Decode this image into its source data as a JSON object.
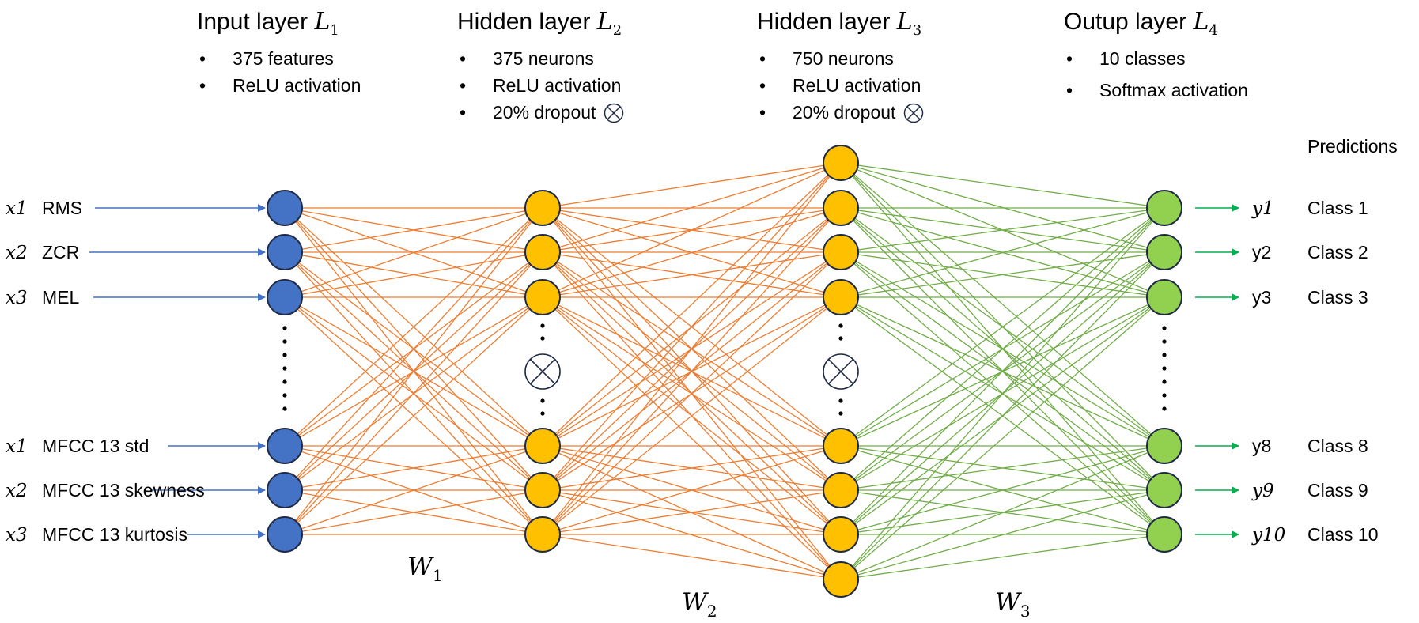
{
  "layers": [
    {
      "title": "Input layer",
      "symbol": "L",
      "sub": "1",
      "bullets": [
        "375 features",
        "ReLU activation"
      ],
      "dropout_bullet": -1
    },
    {
      "title": "Hidden layer",
      "symbol": "L",
      "sub": "2",
      "bullets": [
        "375 neurons",
        "ReLU activation",
        "20% dropout"
      ],
      "dropout_bullet": 2
    },
    {
      "title": "Hidden layer",
      "symbol": "L",
      "sub": "3",
      "bullets": [
        "750 neurons",
        "ReLU activation",
        "20% dropout"
      ],
      "dropout_bullet": 2
    },
    {
      "title": "Outup layer",
      "symbol": "L",
      "sub": "4",
      "bullets": [
        "10 classes",
        "Softmax activation"
      ],
      "dropout_bullet": -1
    }
  ],
  "predictions_label": "Predictions",
  "inputs": [
    {
      "var": "x1",
      "name": "RMS"
    },
    {
      "var": "x2",
      "name": "ZCR"
    },
    {
      "var": "x3",
      "name": "MEL"
    },
    {
      "var": "x1",
      "name": "MFCC 13 std"
    },
    {
      "var": "x2",
      "name": "MFCC 13 skewness"
    },
    {
      "var": "x3",
      "name": "MFCC 13 kurtosis"
    }
  ],
  "outputs": [
    {
      "var": "y1",
      "italic": true,
      "cls": "Class 1"
    },
    {
      "var": "y2",
      "italic": false,
      "cls": "Class 2"
    },
    {
      "var": "y3",
      "italic": false,
      "cls": "Class 3"
    },
    {
      "var": "y8",
      "italic": false,
      "cls": "Class 8"
    },
    {
      "var": "y9",
      "italic": true,
      "cls": "Class 9"
    },
    {
      "var": "y10",
      "italic": true,
      "cls": "Class 10"
    }
  ],
  "weights": [
    {
      "symbol": "W",
      "sub": "1"
    },
    {
      "symbol": "W",
      "sub": "2"
    },
    {
      "symbol": "W",
      "sub": "3"
    }
  ],
  "colors": {
    "input_node": "#4472C4",
    "hidden_node": "#FFC000",
    "output_node": "#92D050",
    "node_stroke": "#1F2A44",
    "edge_hidden": "#ED7D31",
    "edge_output": "#70AD47",
    "input_arrow": "#4472C4",
    "output_arrow": "#00B050"
  }
}
